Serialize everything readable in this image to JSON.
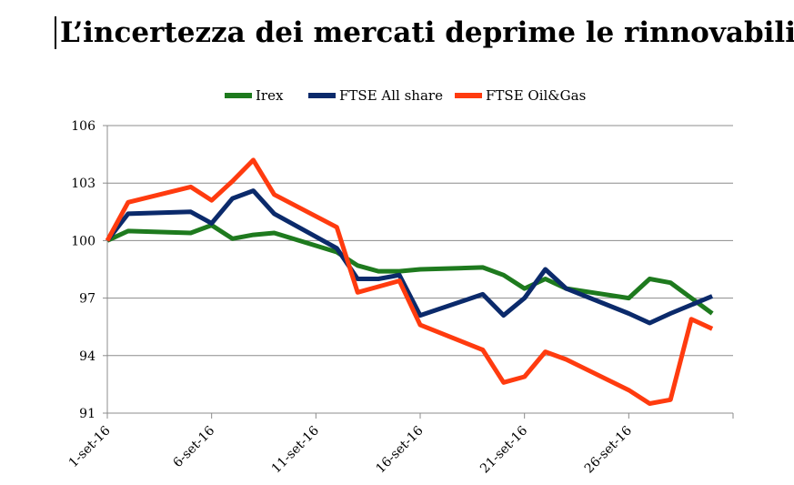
{
  "title": "L’incertezza dei mercati deprime le rinnovabili",
  "chart_data": {
    "type": "line",
    "title": "L’incertezza dei mercati deprime le rinnovabili",
    "xlabel": "",
    "ylabel": "",
    "ylim": [
      91,
      106
    ],
    "yticks": [
      "91",
      "94",
      "97",
      "100",
      "103",
      "106"
    ],
    "xticks": [
      {
        "label": "1-set-16",
        "day": 1
      },
      {
        "label": "6-set-16",
        "day": 6
      },
      {
        "label": "11-set-16",
        "day": 11
      },
      {
        "label": "16-set-16",
        "day": 16
      },
      {
        "label": "21-set-16",
        "day": 21
      },
      {
        "label": "26-set-16",
        "day": 26
      }
    ],
    "xlim": [
      1,
      31
    ],
    "legend_position": "top",
    "grid": true,
    "series": [
      {
        "name": "Irex",
        "color": "#1e7a1e",
        "points": [
          [
            1,
            100
          ],
          [
            2,
            100.5
          ],
          [
            5,
            100.4
          ],
          [
            6,
            100.8
          ],
          [
            7,
            100.1
          ],
          [
            8,
            100.3
          ],
          [
            9,
            100.4
          ],
          [
            12,
            99.4
          ],
          [
            13,
            98.7
          ],
          [
            14,
            98.4
          ],
          [
            15,
            98.4
          ],
          [
            16,
            98.5
          ],
          [
            19,
            98.6
          ],
          [
            20,
            98.2
          ],
          [
            21,
            97.5
          ],
          [
            22,
            98.0
          ],
          [
            23,
            97.5
          ],
          [
            26,
            97.0
          ],
          [
            27,
            98.0
          ],
          [
            28,
            97.8
          ],
          [
            30,
            96.2
          ]
        ]
      },
      {
        "name": "FTSE All share",
        "color": "#0b2a6b",
        "points": [
          [
            1,
            100
          ],
          [
            2,
            101.4
          ],
          [
            5,
            101.5
          ],
          [
            6,
            100.9
          ],
          [
            7,
            102.2
          ],
          [
            8,
            102.6
          ],
          [
            9,
            101.4
          ],
          [
            12,
            99.6
          ],
          [
            13,
            98.0
          ],
          [
            14,
            98.0
          ],
          [
            15,
            98.2
          ],
          [
            16,
            96.1
          ],
          [
            19,
            97.2
          ],
          [
            20,
            96.1
          ],
          [
            21,
            97.0
          ],
          [
            22,
            98.5
          ],
          [
            23,
            97.5
          ],
          [
            26,
            96.2
          ],
          [
            27,
            95.7
          ],
          [
            28,
            96.2
          ],
          [
            30,
            97.1
          ]
        ]
      },
      {
        "name": "FTSE Oil&Gas",
        "color": "#ff3b0f",
        "points": [
          [
            1,
            100
          ],
          [
            2,
            102.0
          ],
          [
            5,
            102.8
          ],
          [
            6,
            102.1
          ],
          [
            7,
            103.1
          ],
          [
            8,
            104.2
          ],
          [
            9,
            102.4
          ],
          [
            12,
            100.7
          ],
          [
            13,
            97.3
          ],
          [
            14,
            97.6
          ],
          [
            15,
            97.9
          ],
          [
            16,
            95.6
          ],
          [
            19,
            94.3
          ],
          [
            20,
            92.6
          ],
          [
            21,
            92.9
          ],
          [
            22,
            94.2
          ],
          [
            23,
            93.8
          ],
          [
            26,
            92.2
          ],
          [
            27,
            91.5
          ],
          [
            28,
            91.7
          ],
          [
            29,
            95.9
          ],
          [
            30,
            95.4
          ]
        ]
      }
    ]
  }
}
